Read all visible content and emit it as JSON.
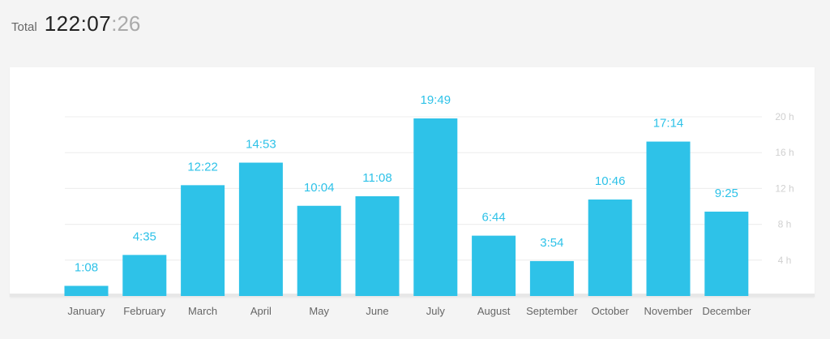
{
  "header": {
    "total_label": "Total",
    "total_main": "122:07",
    "total_seconds": ":26"
  },
  "colors": {
    "bar": "#2ec2e8",
    "background": "#f4f4f4",
    "card": "#ffffff",
    "grid": "#ececec"
  },
  "chart_data": {
    "type": "bar",
    "categories": [
      "January",
      "February",
      "March",
      "April",
      "May",
      "June",
      "July",
      "August",
      "September",
      "October",
      "November",
      "December"
    ],
    "values": [
      1.133,
      4.583,
      12.367,
      14.883,
      10.067,
      11.133,
      19.817,
      6.733,
      3.9,
      10.767,
      17.233,
      9.417
    ],
    "data_labels": [
      "1:08",
      "4:35",
      "12:22",
      "14:53",
      "10:04",
      "11:08",
      "19:49",
      "6:44",
      "3:54",
      "10:46",
      "17:14",
      "9:25"
    ],
    "y_ticks": [
      4,
      8,
      12,
      16,
      20
    ],
    "y_tick_labels": [
      "4 h",
      "8 h",
      "12 h",
      "16 h",
      "20 h"
    ],
    "ylim": [
      0,
      20
    ],
    "grid": true,
    "y_axis_side": "right",
    "legend": false
  }
}
